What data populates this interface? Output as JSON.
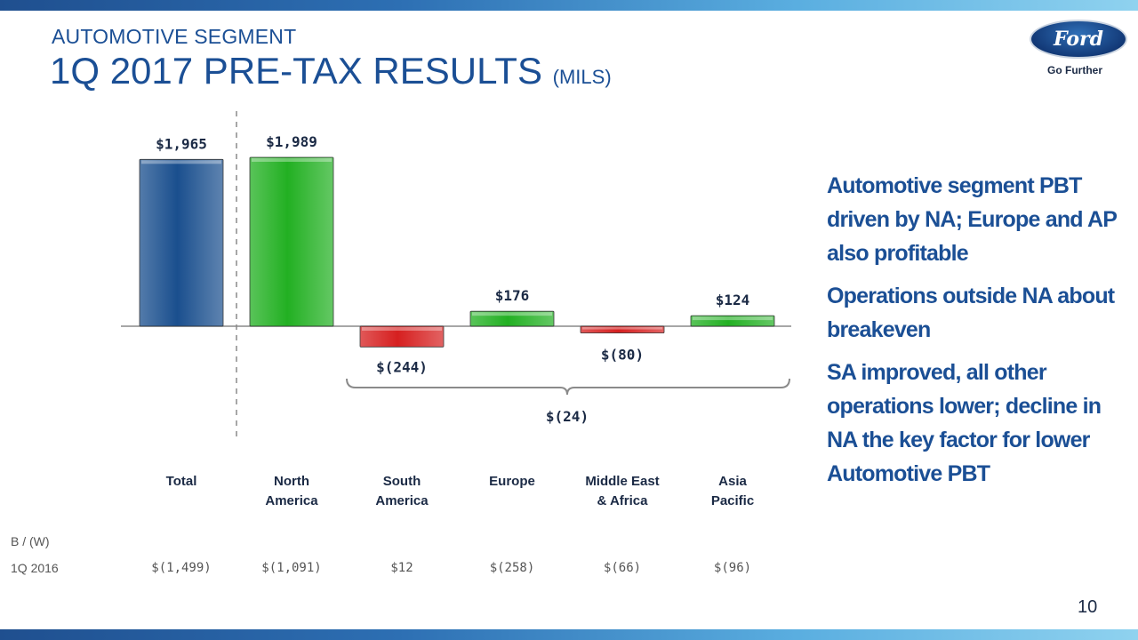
{
  "header": {
    "section": "AUTOMOTIVE SEGMENT",
    "title": "1Q 2017 PRE-TAX RESULTS",
    "unit": "(MILS)"
  },
  "logo": {
    "brand": "Ford",
    "tagline": "Go Further"
  },
  "chart_data": {
    "type": "bar",
    "categories": [
      "Total",
      "North America",
      "South America",
      "Europe",
      "Middle East & Africa",
      "Asia Pacific"
    ],
    "category_lines": [
      [
        "Total"
      ],
      [
        "North",
        "America"
      ],
      [
        "South",
        "America"
      ],
      [
        "Europe"
      ],
      [
        "Middle East",
        "& Africa"
      ],
      [
        "Asia",
        "Pacific"
      ]
    ],
    "values": [
      1965,
      1989,
      -244,
      176,
      -80,
      124
    ],
    "data_labels": [
      "$1,965",
      "$1,989",
      "$(244)",
      "$176",
      "$(80)",
      "$124"
    ],
    "bar_colors": [
      "#1a4f8e",
      "#22b022",
      "#d62020",
      "#22b022",
      "#d62020",
      "#22b022"
    ],
    "subtotal": {
      "label": "$(24)",
      "value": -24,
      "from_category": "South America",
      "to_category": "Asia Pacific"
    },
    "ylim": [
      -500,
      2150
    ],
    "grid": false
  },
  "comparison": {
    "header": "B / (W)",
    "row_label": "1Q 2016",
    "values": [
      "$(1,499)",
      "$(1,091)",
      "$12",
      "$(258)",
      "$(66)",
      "$(96)"
    ]
  },
  "bullets": [
    "Automotive segment PBT driven by NA; Europe and AP also profitable",
    "Operations outside NA about breakeven",
    "SA improved, all other operations lower; decline in NA the key factor for lower Automotive PBT"
  ],
  "colors": {
    "title": "#1b4f95",
    "navy_bar": "#1a4f8e",
    "green_bar": "#22b022",
    "red_bar": "#d62020"
  },
  "page_number": "10"
}
